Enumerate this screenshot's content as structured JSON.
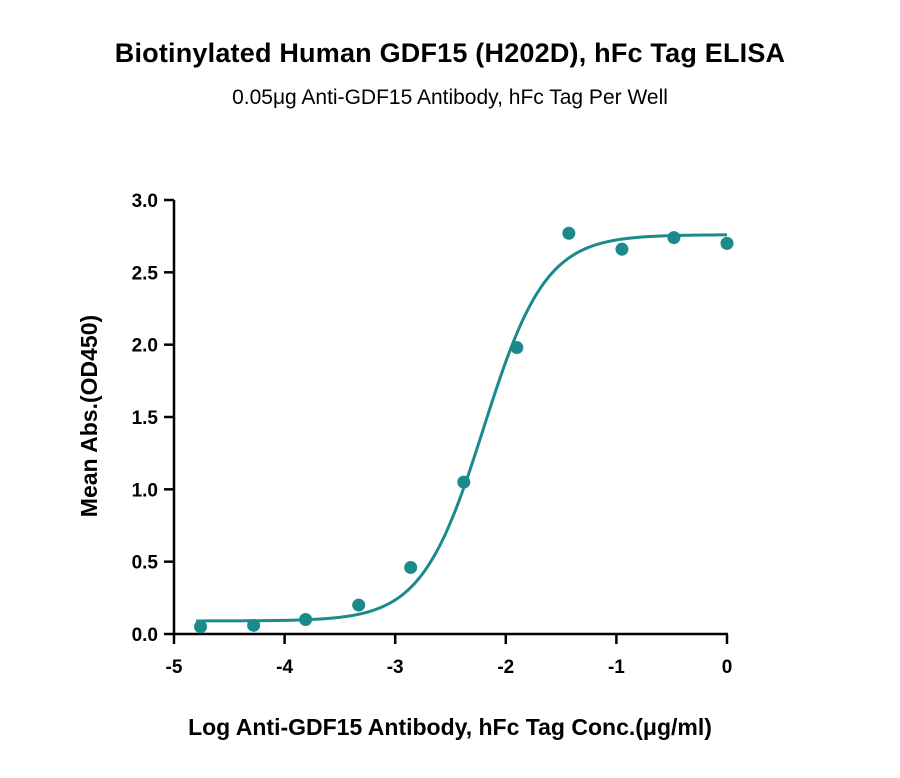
{
  "chart_data": {
    "type": "scatter",
    "title": "Biotinylated Human GDF15 (H202D), hFc Tag ELISA",
    "subtitle": "0.05μg Anti-GDF15 Antibody, hFc Tag Per Well",
    "xlabel": "Log Anti-GDF15 Antibody, hFc Tag Conc.(μg/ml)",
    "ylabel": "Mean Abs.(OD450)",
    "xlim": [
      -5,
      0
    ],
    "ylim": [
      0,
      3.0
    ],
    "x_ticks": [
      "-5",
      "-4",
      "-3",
      "-2",
      "-1",
      "0"
    ],
    "y_ticks": [
      "0.0",
      "0.5",
      "1.0",
      "1.5",
      "2.0",
      "2.5",
      "3.0"
    ],
    "grid": false,
    "series": [
      {
        "color": "#1a8a8a",
        "points": [
          {
            "x": -4.76,
            "y": 0.05
          },
          {
            "x": -4.28,
            "y": 0.06
          },
          {
            "x": -3.81,
            "y": 0.1
          },
          {
            "x": -3.33,
            "y": 0.2
          },
          {
            "x": -2.86,
            "y": 0.46
          },
          {
            "x": -2.38,
            "y": 1.05
          },
          {
            "x": -1.9,
            "y": 1.98
          },
          {
            "x": -1.43,
            "y": 2.77
          },
          {
            "x": -0.95,
            "y": 2.66
          },
          {
            "x": -0.48,
            "y": 2.74
          },
          {
            "x": 0.0,
            "y": 2.7
          }
        ],
        "fit": {
          "model": "4PL",
          "bottom": 0.09,
          "top": 2.76,
          "logEC50": -2.2,
          "hill": 1.55
        }
      }
    ]
  }
}
